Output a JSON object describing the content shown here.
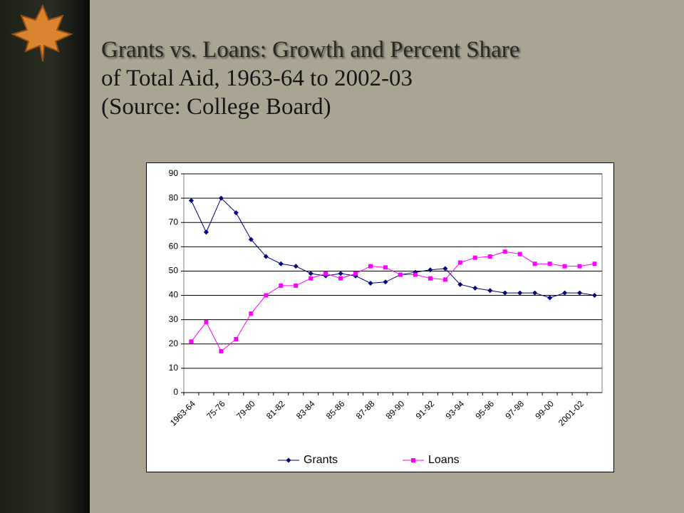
{
  "title_lines": [
    "Grants vs. Loans: Growth and Percent Share",
    "of Total Aid, 1963-64 to 2002-03",
    "(Source: College Board)"
  ],
  "chart_data": {
    "type": "line",
    "categories": [
      "1963-64",
      null,
      "75-76",
      null,
      "79-80",
      null,
      "81-82",
      null,
      "83-84",
      null,
      "85-86",
      null,
      "87-88",
      null,
      "89-90",
      null,
      "91-92",
      null,
      "93-94",
      null,
      "95-96",
      null,
      "97-98",
      null,
      "99-00",
      null,
      "2001-02",
      null
    ],
    "series": [
      {
        "name": "Grants",
        "color": "#000080",
        "marker": "diamond",
        "values": [
          79,
          66,
          80,
          74,
          63,
          56,
          53,
          52,
          49,
          48,
          49,
          48,
          45,
          45.5,
          48.5,
          49.5,
          50.5,
          51,
          44.5,
          43,
          42,
          41,
          41,
          41,
          39,
          41,
          41,
          40
        ]
      },
      {
        "name": "Loans",
        "color": "#ff00ff",
        "marker": "square",
        "values": [
          21,
          29,
          17,
          22,
          32.5,
          40,
          44,
          44,
          47,
          49,
          47,
          49,
          52,
          51.5,
          48.5,
          48.5,
          47,
          46.5,
          53.5,
          55.5,
          56,
          58,
          57,
          53,
          53,
          52,
          52,
          53
        ]
      }
    ],
    "ylim": [
      0,
      90
    ],
    "yticks": [
      0,
      10,
      20,
      30,
      40,
      50,
      60,
      70,
      80,
      90
    ],
    "grid": true,
    "legend": "bottom"
  }
}
